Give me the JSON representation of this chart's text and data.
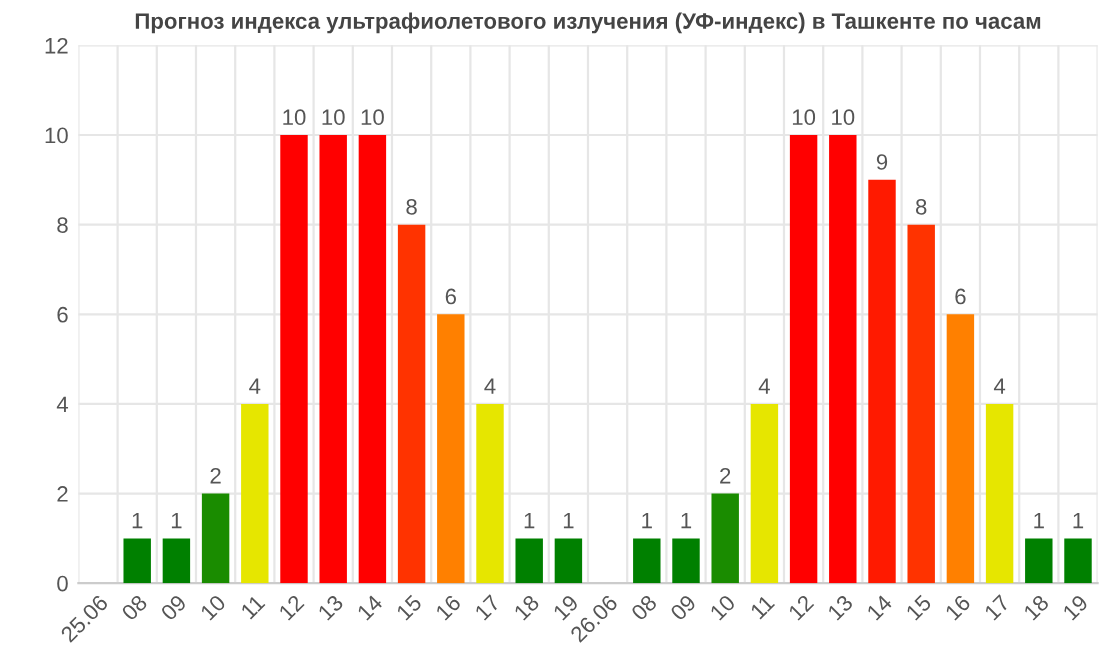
{
  "chart_data": {
    "type": "bar",
    "title": "Прогноз индекса ультрафиолетового излучения (УФ-индекс) в Ташкенте по часам",
    "categories": [
      "25.06",
      "08",
      "09",
      "10",
      "11",
      "12",
      "13",
      "14",
      "15",
      "16",
      "17",
      "18",
      "19",
      "26.06",
      "08",
      "09",
      "10",
      "11",
      "12",
      "13",
      "14",
      "15",
      "16",
      "17",
      "18",
      "19"
    ],
    "values": [
      null,
      1,
      1,
      2,
      4,
      10,
      10,
      10,
      8,
      6,
      4,
      1,
      1,
      null,
      1,
      1,
      2,
      4,
      10,
      10,
      9,
      8,
      6,
      4,
      1,
      1
    ],
    "colors": [
      "#008000",
      "#008000",
      "#008000",
      "#1a8c00",
      "#e6e600",
      "#ff0000",
      "#ff0000",
      "#ff0000",
      "#ff3300",
      "#ff8000",
      "#e6e600",
      "#008000",
      "#008000",
      "#008000",
      "#008000",
      "#008000",
      "#1a8c00",
      "#e6e600",
      "#ff0000",
      "#ff0000",
      "#ff1a00",
      "#ff3300",
      "#ff8000",
      "#e6e600",
      "#008000",
      "#008000"
    ],
    "ylim": [
      0,
      12
    ],
    "yticks": [
      0,
      2,
      4,
      6,
      8,
      10,
      12
    ],
    "grid": true,
    "data_labels": true
  }
}
